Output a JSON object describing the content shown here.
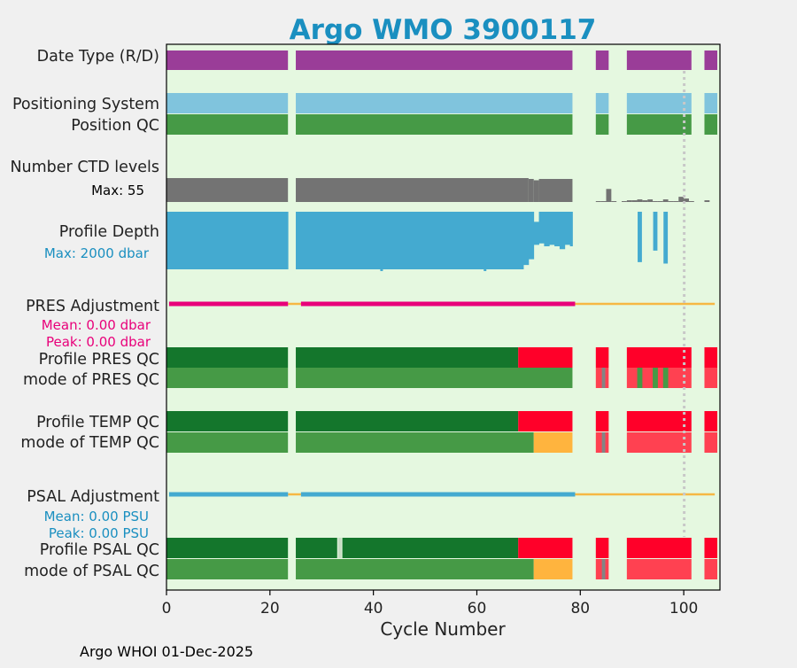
{
  "chart_data": {
    "type": "bar",
    "title": "Argo WMO 3900117",
    "xlabel": "Cycle Number",
    "xlim": [
      0,
      107
    ],
    "xticks": [
      "0",
      "20",
      "40",
      "60",
      "80",
      "100"
    ],
    "xtick_values": [
      0,
      20,
      40,
      60,
      80,
      100
    ],
    "footer": "Argo WHOI 01-Dec-2025",
    "reference_cycle": 100,
    "colors": {
      "title": "#1a8fc0",
      "panel_bg": "#e5f8e0",
      "datetype": "#9a3d98",
      "possys": "#80c4dd",
      "qc_good": "#469a46",
      "qc_profile_a": "#14762c",
      "qc_bad": "#ff0029",
      "qc_bad_light": "#ff4151",
      "qc_probable": "#ffb43e",
      "qc_missing": "#848484",
      "ctd": "#737373",
      "depth": "#44aad0",
      "pres_adj": "#e8007a",
      "psal_adj": "#44aad0",
      "adj_zero": "#f6b844",
      "ref_line": "#c8c8c8"
    },
    "rows": [
      "Date Type (R/D)",
      "Positioning System",
      "Position QC",
      "Number CTD levels",
      "Profile Depth",
      "PRES Adjustment",
      "Profile PRES QC",
      "mode of PRES QC",
      "Profile TEMP QC",
      "mode of TEMP QC",
      "PSAL Adjustment",
      "Profile PSAL QC",
      "mode of PSAL QC"
    ],
    "annotations": {
      "ctd_max": "Max: 55",
      "depth_max": "Max: 2000 dbar",
      "pres_mean": "Mean: 0.00 dbar",
      "pres_peak": "Peak: 0.00 dbar",
      "psal_mean": "Mean: 0.00 PSU",
      "psal_peak": "Peak: 0.00 PSU"
    },
    "cycle_segments": [
      [
        0,
        24
      ],
      [
        25,
        79
      ],
      [
        83,
        86
      ],
      [
        89,
        102
      ],
      [
        104,
        107
      ]
    ],
    "ctd_levels": {
      "max": 55,
      "main_segments": [
        [
          0,
          24,
          55
        ],
        [
          25,
          70,
          55
        ],
        [
          70,
          71,
          53
        ],
        [
          71,
          72,
          50
        ],
        [
          72,
          79,
          53
        ]
      ],
      "late_cycles": [
        {
          "cycle": 83,
          "value": 2
        },
        {
          "cycle": 84,
          "value": 2
        },
        {
          "cycle": 85,
          "value": 30
        },
        {
          "cycle": 86,
          "value": 2
        },
        {
          "cycle": 88,
          "value": 2
        },
        {
          "cycle": 89,
          "value": 4
        },
        {
          "cycle": 90,
          "value": 4
        },
        {
          "cycle": 91,
          "value": 6
        },
        {
          "cycle": 92,
          "value": 4
        },
        {
          "cycle": 93,
          "value": 6
        },
        {
          "cycle": 94,
          "value": 2
        },
        {
          "cycle": 95,
          "value": 2
        },
        {
          "cycle": 96,
          "value": 6
        },
        {
          "cycle": 97,
          "value": 2
        },
        {
          "cycle": 98,
          "value": 2
        },
        {
          "cycle": 99,
          "value": 12
        },
        {
          "cycle": 100,
          "value": 8
        },
        {
          "cycle": 101,
          "value": 2
        },
        {
          "cycle": 104,
          "value": 4
        }
      ]
    },
    "profile_depth": {
      "max": 2000,
      "cycles": [
        {
          "cycle": 0,
          "top": 0,
          "bottom": 2000
        },
        {
          "cycle": 1,
          "top": 0,
          "bottom": 2000
        },
        {
          "cycle": 2,
          "top": 0,
          "bottom": 2000
        },
        {
          "cycle": 3,
          "top": 0,
          "bottom": 2000
        },
        {
          "cycle": 4,
          "top": 0,
          "bottom": 2000
        },
        {
          "cycle": 5,
          "top": 0,
          "bottom": 2000
        },
        {
          "cycle": 6,
          "top": 0,
          "bottom": 2000
        },
        {
          "cycle": 7,
          "top": 0,
          "bottom": 2000
        },
        {
          "cycle": 8,
          "top": 0,
          "bottom": 2000
        },
        {
          "cycle": 9,
          "top": 0,
          "bottom": 2000
        },
        {
          "cycle": 10,
          "top": 0,
          "bottom": 2000
        },
        {
          "cycle": 11,
          "top": 0,
          "bottom": 2000
        },
        {
          "cycle": 12,
          "top": 0,
          "bottom": 2000
        },
        {
          "cycle": 13,
          "top": 0,
          "bottom": 2000
        },
        {
          "cycle": 14,
          "top": 0,
          "bottom": 2000
        },
        {
          "cycle": 15,
          "top": 0,
          "bottom": 2000
        },
        {
          "cycle": 16,
          "top": 0,
          "bottom": 2000
        },
        {
          "cycle": 17,
          "top": 0,
          "bottom": 2000
        },
        {
          "cycle": 18,
          "top": 0,
          "bottom": 2000
        },
        {
          "cycle": 19,
          "top": 0,
          "bottom": 2000
        },
        {
          "cycle": 20,
          "top": 0,
          "bottom": 2000
        },
        {
          "cycle": 21,
          "top": 0,
          "bottom": 2000
        },
        {
          "cycle": 22,
          "top": 0,
          "bottom": 2000
        },
        {
          "cycle": 23,
          "top": 0,
          "bottom": 2000
        },
        {
          "cycle": 25,
          "top": 0,
          "bottom": 2000
        },
        {
          "cycle": 26,
          "top": 0,
          "bottom": 2000
        },
        {
          "cycle": 27,
          "top": 0,
          "bottom": 2000
        },
        {
          "cycle": 28,
          "top": 0,
          "bottom": 2000
        },
        {
          "cycle": 29,
          "top": 0,
          "bottom": 2000
        },
        {
          "cycle": 30,
          "top": 0,
          "bottom": 2000
        },
        {
          "cycle": 31,
          "top": 0,
          "bottom": 2000
        },
        {
          "cycle": 32,
          "top": 0,
          "bottom": 2000
        },
        {
          "cycle": 33,
          "top": 0,
          "bottom": 2000
        },
        {
          "cycle": 34,
          "top": 0,
          "bottom": 2000
        },
        {
          "cycle": 35,
          "top": 0,
          "bottom": 2000
        },
        {
          "cycle": 36,
          "top": 0,
          "bottom": 2000
        },
        {
          "cycle": 37,
          "top": 0,
          "bottom": 2000
        },
        {
          "cycle": 38,
          "top": 0,
          "bottom": 2000
        },
        {
          "cycle": 39,
          "top": 0,
          "bottom": 2000
        },
        {
          "cycle": 40,
          "top": 0,
          "bottom": 2000
        },
        {
          "cycle": 41,
          "top": 0,
          "bottom": 2000
        },
        {
          "cycle": 42,
          "top": 0,
          "bottom": 2000
        },
        {
          "cycle": 43,
          "top": 0,
          "bottom": 2000
        },
        {
          "cycle": 44,
          "top": 0,
          "bottom": 2000
        },
        {
          "cycle": 45,
          "top": 0,
          "bottom": 2000
        },
        {
          "cycle": 46,
          "top": 0,
          "bottom": 2000
        },
        {
          "cycle": 47,
          "top": 0,
          "bottom": 2000
        },
        {
          "cycle": 48,
          "top": 0,
          "bottom": 2000
        },
        {
          "cycle": 49,
          "top": 0,
          "bottom": 2000
        },
        {
          "cycle": 50,
          "top": 0,
          "bottom": 2000
        },
        {
          "cycle": 51,
          "top": 0,
          "bottom": 2000
        },
        {
          "cycle": 52,
          "top": 0,
          "bottom": 2000
        },
        {
          "cycle": 53,
          "top": 0,
          "bottom": 2000
        },
        {
          "cycle": 54,
          "top": 0,
          "bottom": 2000
        },
        {
          "cycle": 55,
          "top": 0,
          "bottom": 2000
        },
        {
          "cycle": 56,
          "top": 0,
          "bottom": 2000
        },
        {
          "cycle": 57,
          "top": 0,
          "bottom": 2000
        },
        {
          "cycle": 58,
          "top": 0,
          "bottom": 2000
        },
        {
          "cycle": 59,
          "top": 0,
          "bottom": 2000
        },
        {
          "cycle": 60,
          "top": 0,
          "bottom": 2000
        },
        {
          "cycle": 61,
          "top": 0,
          "bottom": 2000
        },
        {
          "cycle": 62,
          "top": 0,
          "bottom": 2000
        },
        {
          "cycle": 63,
          "top": 0,
          "bottom": 2000
        },
        {
          "cycle": 64,
          "top": 0,
          "bottom": 2000
        },
        {
          "cycle": 65,
          "top": 0,
          "bottom": 2000
        },
        {
          "cycle": 66,
          "top": 0,
          "bottom": 2000
        },
        {
          "cycle": 67,
          "top": 0,
          "bottom": 2000
        },
        {
          "cycle": 68,
          "top": 0,
          "bottom": 2000
        },
        {
          "cycle": 69,
          "top": 0,
          "bottom": 1850
        },
        {
          "cycle": 70,
          "top": 0,
          "bottom": 1650
        },
        {
          "cycle": 71,
          "top": 350,
          "bottom": 1150
        },
        {
          "cycle": 72,
          "top": 0,
          "bottom": 1100
        },
        {
          "cycle": 73,
          "top": 0,
          "bottom": 1200
        },
        {
          "cycle": 74,
          "top": 0,
          "bottom": 1150
        },
        {
          "cycle": 75,
          "top": 0,
          "bottom": 1200
        },
        {
          "cycle": 76,
          "top": 0,
          "bottom": 1300
        },
        {
          "cycle": 77,
          "top": 0,
          "bottom": 1150
        },
        {
          "cycle": 78,
          "top": 0,
          "bottom": 1200
        },
        {
          "cycle": 91,
          "top": 0,
          "bottom": 1750
        },
        {
          "cycle": 94,
          "top": 0,
          "bottom": 1350
        },
        {
          "cycle": 96,
          "top": 0,
          "bottom": 1800
        }
      ],
      "notches": [
        {
          "cycle": 41.5,
          "value": 2030
        },
        {
          "cycle": 61.5,
          "value": 2030
        }
      ]
    },
    "pres_adjustment": {
      "adjusted_segments": [
        [
          0.5,
          23.5
        ],
        [
          26,
          79
        ]
      ],
      "zero_segments": [
        [
          23.5,
          26
        ],
        [
          79,
          106
        ]
      ]
    },
    "psal_adjustment": {
      "adjusted_segments": [
        [
          0.5,
          23.5
        ],
        [
          26,
          79
        ]
      ],
      "zero_segments": [
        [
          23.5,
          26
        ],
        [
          79,
          106
        ]
      ]
    },
    "qc_rows": {
      "profile_pres": [
        {
          "from": 0,
          "to": 24,
          "qc": "A"
        },
        {
          "from": 25,
          "to": 68,
          "qc": "A"
        },
        {
          "from": 68,
          "to": 79,
          "qc": "F"
        },
        {
          "from": 83,
          "to": 86,
          "qc": "F"
        },
        {
          "from": 89,
          "to": 102,
          "qc": "F"
        },
        {
          "from": 104,
          "to": 107,
          "qc": "F"
        }
      ],
      "mode_pres": [
        {
          "from": 0,
          "to": 24,
          "qc": "1"
        },
        {
          "from": 25,
          "to": 79,
          "qc": "1"
        },
        {
          "from": 83,
          "to": 86,
          "qc": "4"
        },
        {
          "from": 84,
          "to": 85,
          "qc": "9"
        },
        {
          "from": 89,
          "to": 102,
          "qc": "4"
        },
        {
          "from": 91,
          "to": 92,
          "qc": "1"
        },
        {
          "from": 94,
          "to": 95,
          "qc": "1"
        },
        {
          "from": 96,
          "to": 97,
          "qc": "1"
        },
        {
          "from": 104,
          "to": 107,
          "qc": "4"
        }
      ],
      "profile_temp": [
        {
          "from": 0,
          "to": 24,
          "qc": "A"
        },
        {
          "from": 25,
          "to": 68,
          "qc": "A"
        },
        {
          "from": 68,
          "to": 79,
          "qc": "F"
        },
        {
          "from": 83,
          "to": 86,
          "qc": "F"
        },
        {
          "from": 89,
          "to": 102,
          "qc": "F"
        },
        {
          "from": 104,
          "to": 107,
          "qc": "F"
        }
      ],
      "mode_temp": [
        {
          "from": 0,
          "to": 24,
          "qc": "1"
        },
        {
          "from": 25,
          "to": 71,
          "qc": "1"
        },
        {
          "from": 71,
          "to": 79,
          "qc": "3"
        },
        {
          "from": 83,
          "to": 86,
          "qc": "4"
        },
        {
          "from": 84,
          "to": 85,
          "qc": "9"
        },
        {
          "from": 89,
          "to": 102,
          "qc": "4"
        },
        {
          "from": 104,
          "to": 107,
          "qc": "4"
        }
      ],
      "profile_psal": [
        {
          "from": 0,
          "to": 24,
          "qc": "A"
        },
        {
          "from": 25,
          "to": 33,
          "qc": "A"
        },
        {
          "from": 33,
          "to": 34,
          "qc": "none"
        },
        {
          "from": 34,
          "to": 68,
          "qc": "A"
        },
        {
          "from": 68,
          "to": 79,
          "qc": "F"
        },
        {
          "from": 83,
          "to": 86,
          "qc": "F"
        },
        {
          "from": 89,
          "to": 102,
          "qc": "F"
        },
        {
          "from": 104,
          "to": 107,
          "qc": "F"
        }
      ],
      "mode_psal": [
        {
          "from": 0,
          "to": 24,
          "qc": "1"
        },
        {
          "from": 25,
          "to": 71,
          "qc": "1"
        },
        {
          "from": 71,
          "to": 79,
          "qc": "3"
        },
        {
          "from": 83,
          "to": 86,
          "qc": "4"
        },
        {
          "from": 84,
          "to": 85,
          "qc": "9"
        },
        {
          "from": 89,
          "to": 102,
          "qc": "4"
        },
        {
          "from": 104,
          "to": 107,
          "qc": "4"
        }
      ]
    }
  }
}
